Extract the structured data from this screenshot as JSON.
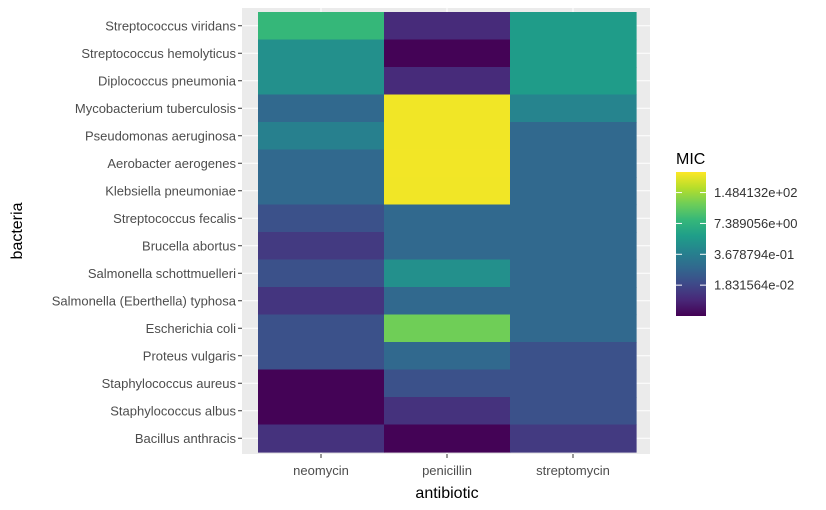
{
  "chart_data": {
    "type": "heatmap",
    "xlabel": "antibiotic",
    "ylabel": "bacteria",
    "x_categories": [
      "neomycin",
      "penicillin",
      "streptomycin"
    ],
    "y_categories": [
      "Streptococcus viridans",
      "Streptococcus hemolyticus",
      "Diplococcus pneumonia",
      "Mycobacterium tuberculosis",
      "Pseudomonas aeruginosa",
      "Aerobacter aerogenes",
      "Klebsiella pneumoniae",
      "Streptococcus fecalis",
      "Brucella abortus",
      "Salmonella schottmuelleri",
      "Salmonella (Eberthella) typhosa",
      "Escherichia coli",
      "Proteus vulgaris",
      "Staphylococcus aureus",
      "Staphylococcus albus",
      "Bacillus anthracis"
    ],
    "values": [
      [
        10,
        0.005,
        2
      ],
      [
        1,
        0.001,
        2
      ],
      [
        1,
        0.005,
        2
      ],
      [
        0.1,
        850,
        0.5
      ],
      [
        0.4,
        850,
        0.1
      ],
      [
        0.1,
        870,
        0.1
      ],
      [
        0.1,
        850,
        0.1
      ],
      [
        0.03,
        0.1,
        0.1
      ],
      [
        0.01,
        0.1,
        0.1
      ],
      [
        0.03,
        1,
        0.1
      ],
      [
        0.008,
        0.1,
        0.1
      ],
      [
        0.03,
        50,
        0.1
      ],
      [
        0.03,
        0.1,
        0.03
      ],
      [
        0.001,
        0.03,
        0.03
      ],
      [
        0.001,
        0.007,
        0.03
      ],
      [
        0.007,
        0.001,
        0.01
      ]
    ],
    "legend": {
      "title": "MIC",
      "labels": [
        "1.484132e+02",
        "7.389056e+00",
        "3.678794e-01",
        "1.831564e-02"
      ],
      "log_range": [
        -7,
        7
      ],
      "break_logs": [
        5,
        2,
        -1,
        -4
      ]
    },
    "colors": {
      "panel_bg": "#ebebeb",
      "grid": "#ffffff",
      "tick": "#333333"
    }
  }
}
